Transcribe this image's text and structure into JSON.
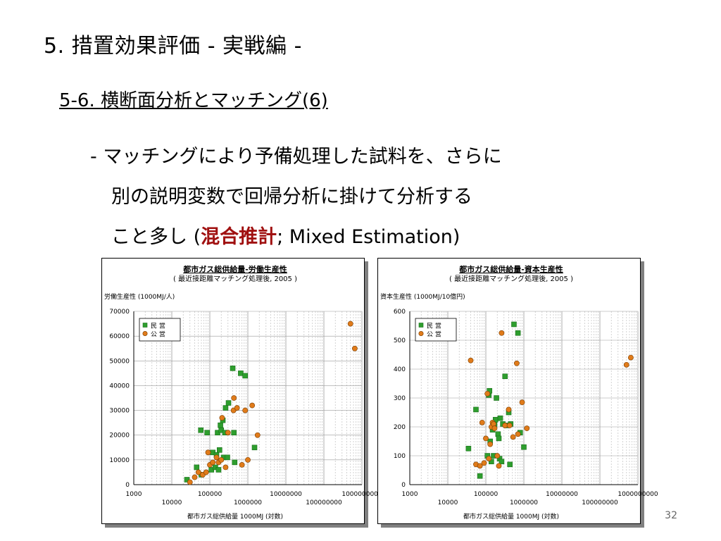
{
  "slide": {
    "title": "5. 措置効果評価 - 実戦編 -",
    "section_heading": "5-6. 横断面分析とマッチング(6)",
    "bullet": {
      "line1": "- マッチングにより予備処理した試料を、さらに",
      "line2": "別の説明変数で回帰分析に掛けて分析する",
      "line3_before": "こと多し (",
      "line3_emph": "混合推計",
      "line3_after": "; Mixed Estimation)"
    },
    "page_number": "32",
    "emphasis_color": "#a01010"
  },
  "chart_data": [
    {
      "type": "scatter",
      "title": "都市ガス総供給量-労働生産性",
      "subtitle": "( 最近接距離マッチング処理後, 2005 )",
      "ylabel": "労働生産性 (1000MJ/人)",
      "xlabel": "都市ガス総供給量 1000MJ (対数)",
      "x_scale": "log",
      "xlim": [
        1000,
        1000000000
      ],
      "ylim": [
        0,
        70000
      ],
      "x_ticks_upper": [
        "1000",
        "100000",
        "10000000",
        "1000000000"
      ],
      "x_ticks_lower": [
        "10000",
        "1000000",
        "100000000"
      ],
      "y_ticks": [
        "70000",
        "60000",
        "50000",
        "40000",
        "30000",
        "20000",
        "10000",
        "0"
      ],
      "legend": {
        "position": "top-left",
        "entries": [
          "民 営",
          "公 営"
        ]
      },
      "grid": true,
      "series": [
        {
          "name": "民 営",
          "marker": "square",
          "color": "#2e9e2e",
          "points": [
            [
              25000,
              2000
            ],
            [
              45000,
              7000
            ],
            [
              60000,
              4000
            ],
            [
              58000,
              22000
            ],
            [
              85000,
              21000
            ],
            [
              110000,
              6000
            ],
            [
              120000,
              13000
            ],
            [
              140000,
              7000
            ],
            [
              150000,
              12000
            ],
            [
              160000,
              21000
            ],
            [
              170000,
              6000
            ],
            [
              180000,
              14000
            ],
            [
              190000,
              24000
            ],
            [
              200000,
              22000
            ],
            [
              220000,
              26000
            ],
            [
              230000,
              11000
            ],
            [
              250000,
              21000
            ],
            [
              260000,
              31000
            ],
            [
              290000,
              11000
            ],
            [
              310000,
              33000
            ],
            [
              400000,
              47000
            ],
            [
              430000,
              21000
            ],
            [
              450000,
              9000
            ],
            [
              650000,
              45000
            ],
            [
              850000,
              44000
            ],
            [
              1500000,
              15000
            ]
          ]
        },
        {
          "name": "公 営",
          "marker": "circle",
          "color": "#e07b1a",
          "points": [
            [
              30000,
              1000
            ],
            [
              40000,
              3000
            ],
            [
              50000,
              5000
            ],
            [
              65000,
              4000
            ],
            [
              80000,
              5000
            ],
            [
              90000,
              13000
            ],
            [
              100000,
              8000
            ],
            [
              120000,
              9000
            ],
            [
              150000,
              11000
            ],
            [
              170000,
              9000
            ],
            [
              200000,
              10000
            ],
            [
              210000,
              27000
            ],
            [
              260000,
              7000
            ],
            [
              300000,
              21000
            ],
            [
              420000,
              30000
            ],
            [
              430000,
              35000
            ],
            [
              520000,
              31000
            ],
            [
              700000,
              8000
            ],
            [
              850000,
              30000
            ],
            [
              1000000,
              10000
            ],
            [
              1300000,
              32000
            ],
            [
              1800000,
              20000
            ],
            [
              500000000,
              65000
            ],
            [
              650000000,
              55000
            ]
          ]
        }
      ]
    },
    {
      "type": "scatter",
      "title": "都市ガス総供給量-資本生産性",
      "subtitle": "( 最近接距離マッチング処理後, 2005 )",
      "ylabel": "資本生産性 (1000MJ/10億円)",
      "xlabel": "都市ガス総供給量 1000MJ (対数)",
      "x_scale": "log",
      "xlim": [
        1000,
        1000000000
      ],
      "ylim": [
        0,
        600
      ],
      "x_ticks_upper": [
        "1000",
        "100000",
        "10000000",
        "1000000000"
      ],
      "x_ticks_lower": [
        "10000",
        "1000000",
        "100000000"
      ],
      "y_ticks": [
        "600",
        "500",
        "400",
        "300",
        "200",
        "100",
        "0"
      ],
      "legend": {
        "position": "top-left",
        "entries": [
          "民 営",
          "公 営"
        ]
      },
      "grid": true,
      "series": [
        {
          "name": "民 営",
          "marker": "square",
          "color": "#2e9e2e",
          "points": [
            [
              35000,
              125
            ],
            [
              55000,
              260
            ],
            [
              70000,
              30
            ],
            [
              110000,
              100
            ],
            [
              120000,
              310
            ],
            [
              125000,
              325
            ],
            [
              130000,
              150
            ],
            [
              140000,
              80
            ],
            [
              150000,
              190
            ],
            [
              160000,
              100
            ],
            [
              170000,
              210
            ],
            [
              180000,
              225
            ],
            [
              190000,
              300
            ],
            [
              210000,
              175
            ],
            [
              220000,
              160
            ],
            [
              230000,
              90
            ],
            [
              240000,
              230
            ],
            [
              260000,
              80
            ],
            [
              280000,
              210
            ],
            [
              320000,
              375
            ],
            [
              350000,
              205
            ],
            [
              400000,
              250
            ],
            [
              430000,
              70
            ],
            [
              450000,
              210
            ],
            [
              550000,
              555
            ],
            [
              700000,
              525
            ],
            [
              800000,
              180
            ],
            [
              1000000,
              130
            ]
          ]
        },
        {
          "name": "公 営",
          "marker": "circle",
          "color": "#e07b1a",
          "points": [
            [
              40000,
              430
            ],
            [
              55000,
              70
            ],
            [
              70000,
              65
            ],
            [
              80000,
              215
            ],
            [
              90000,
              75
            ],
            [
              100000,
              160
            ],
            [
              110000,
              315
            ],
            [
              120000,
              90
            ],
            [
              130000,
              140
            ],
            [
              140000,
              200
            ],
            [
              150000,
              215
            ],
            [
              160000,
              210
            ],
            [
              170000,
              195
            ],
            [
              200000,
              100
            ],
            [
              220000,
              65
            ],
            [
              260000,
              525
            ],
            [
              320000,
              205
            ],
            [
              400000,
              260
            ],
            [
              420000,
              205
            ],
            [
              520000,
              165
            ],
            [
              650000,
              420
            ],
            [
              700000,
              175
            ],
            [
              900000,
              285
            ],
            [
              1200000,
              195
            ],
            [
              500000000,
              415
            ],
            [
              650000000,
              440
            ]
          ]
        }
      ]
    }
  ]
}
